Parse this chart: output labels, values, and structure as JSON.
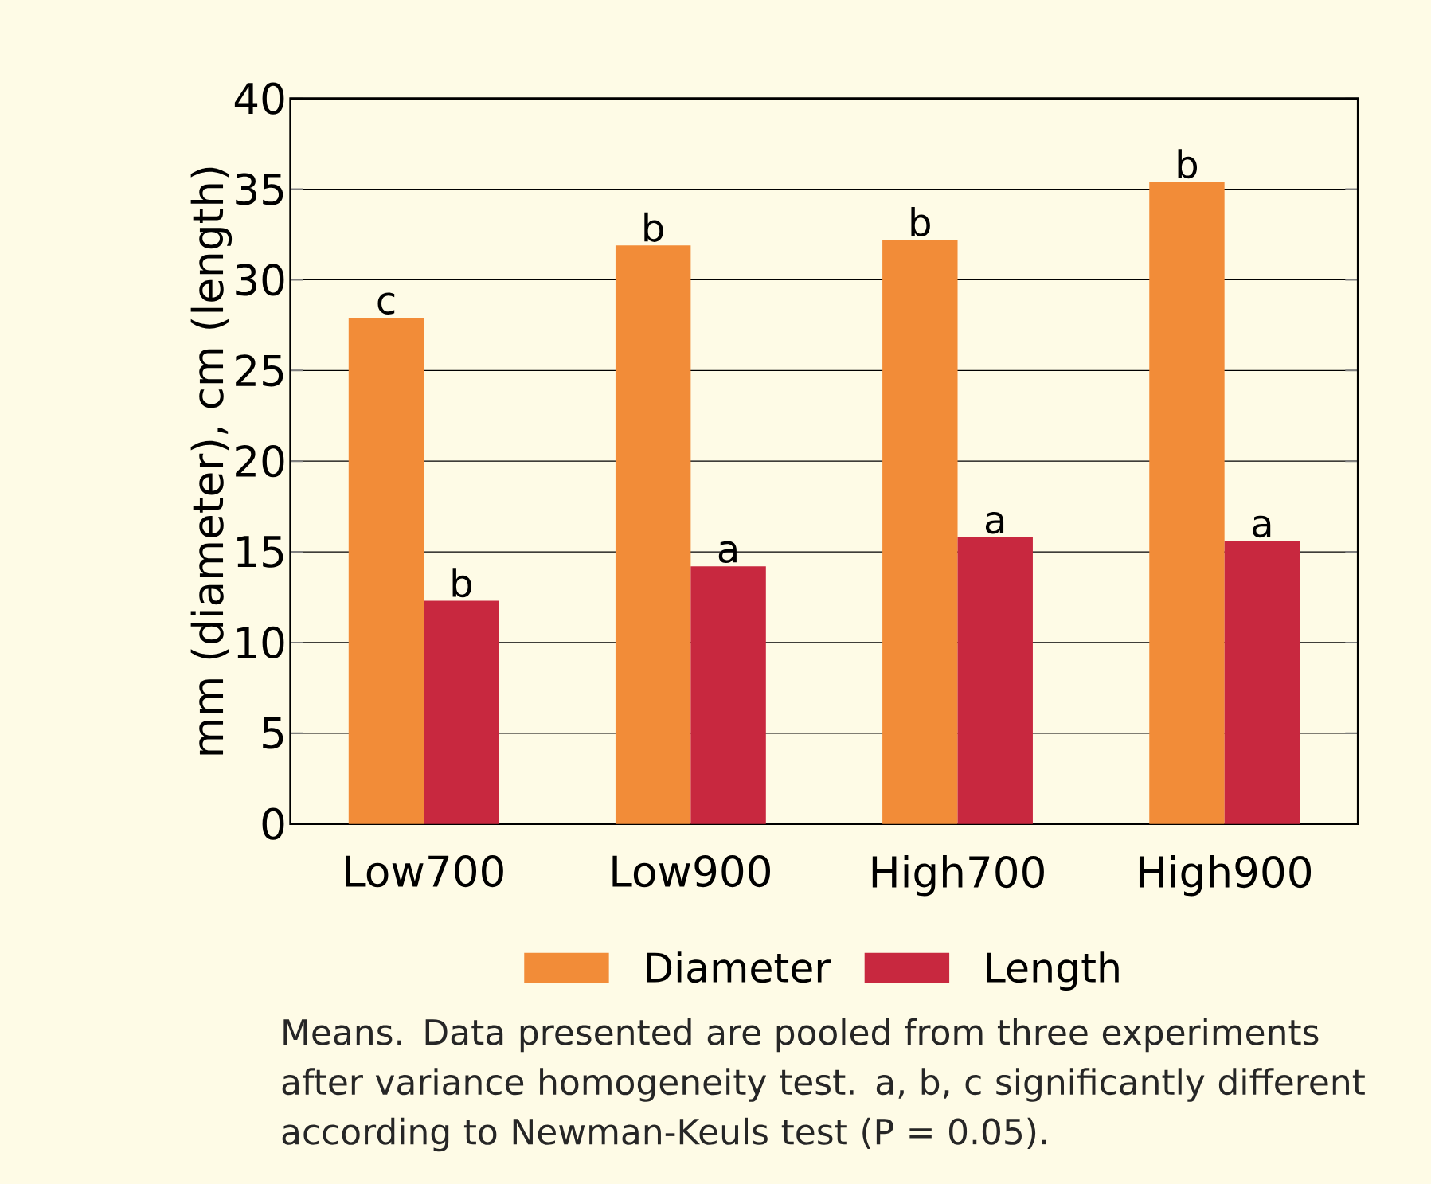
{
  "chart_data": {
    "type": "bar",
    "ylabel": "mm (diameter), cm (length)",
    "categories": [
      "Low700",
      "Low900",
      "High700",
      "High900"
    ],
    "series": [
      {
        "name": "Diameter",
        "color": "#f28c38",
        "values": [
          27.9,
          31.9,
          32.2,
          35.4
        ],
        "value_labels": [
          "c",
          "b",
          "b",
          "b"
        ]
      },
      {
        "name": "Length",
        "color": "#c8283f",
        "values": [
          12.3,
          14.2,
          15.8,
          15.6
        ],
        "value_labels": [
          "b",
          "a",
          "a",
          "a"
        ]
      }
    ],
    "ylim": [
      0,
      40
    ],
    "yticks": [
      0,
      5,
      10,
      15,
      20,
      25,
      30,
      35,
      40
    ],
    "grid": "y",
    "legend": "bottom",
    "annotations": [
      "Means. Data presented are pooled from three experiments after variance homogeneity test. a, b, c significantly different according to Newman-Keuls test (P = 0.05)."
    ]
  }
}
